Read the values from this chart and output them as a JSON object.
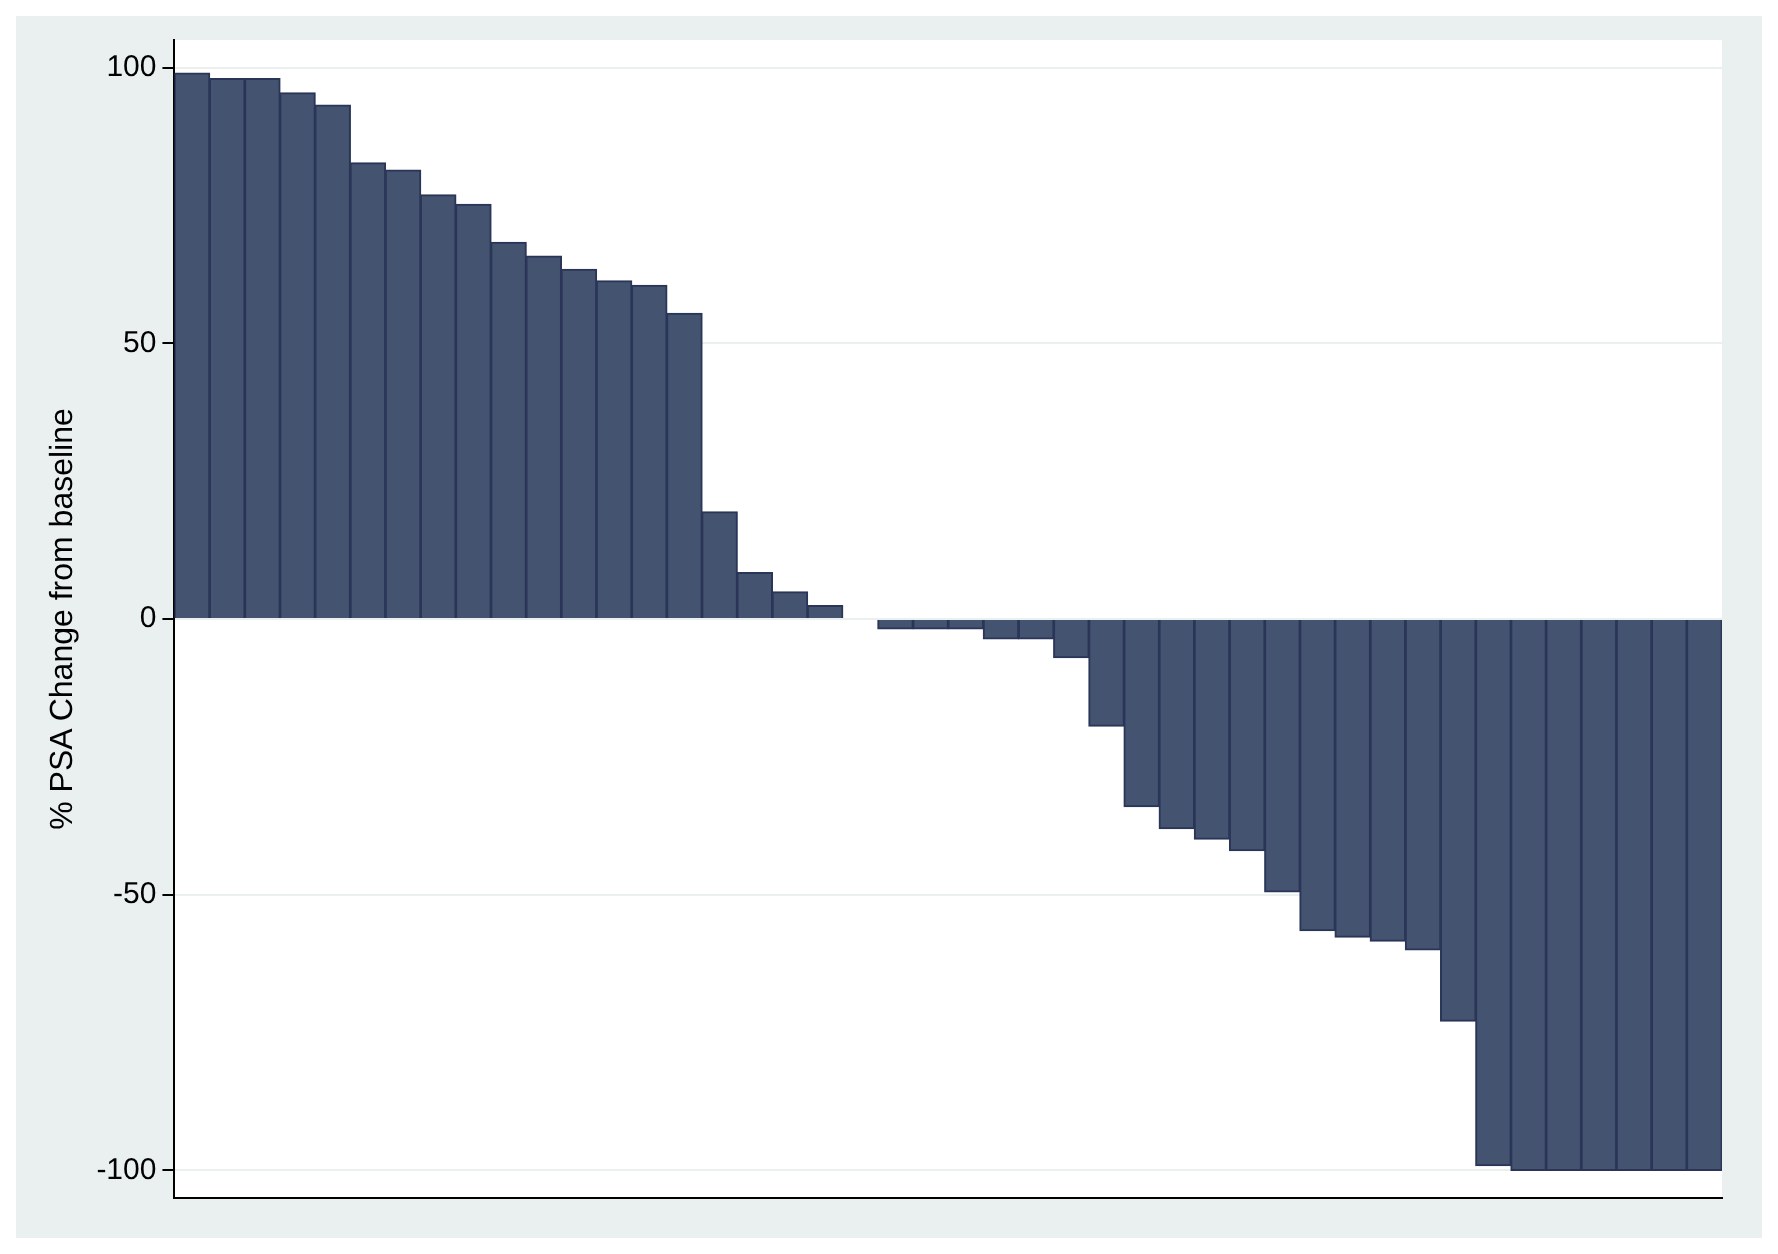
{
  "chart_data": {
    "type": "bar",
    "ylabel": "% PSA Change from baseline",
    "categories": [
      null,
      null,
      null,
      null,
      null,
      null,
      null,
      null,
      null,
      null,
      null,
      null,
      null,
      null,
      null,
      null,
      null,
      null,
      null,
      null,
      null,
      null,
      null,
      null,
      null,
      null,
      null,
      null,
      null,
      null,
      null,
      null,
      null,
      null,
      null,
      null,
      null,
      null,
      null,
      null,
      null,
      null,
      null,
      null
    ],
    "values": [
      99,
      98,
      98,
      95.4,
      93.2,
      82.7,
      81.4,
      76.9,
      75.2,
      68.3,
      65.8,
      63.4,
      61.3,
      60.5,
      55.4,
      19.4,
      8.4,
      4.9,
      2.4,
      0,
      -1.8,
      -1.8,
      -1.8,
      -3.6,
      -3.6,
      -7,
      -19.4,
      -34,
      -38,
      -39.9,
      -42,
      -49.5,
      -56.5,
      -57.7,
      -58.4,
      -60,
      -72.9,
      -99.1,
      -100,
      -100,
      -100,
      -100,
      -100,
      -100
    ],
    "color": "#44536f",
    "ylim": [
      -105,
      105
    ],
    "yticks": [
      -100,
      -50,
      0,
      50,
      100
    ],
    "grid": "y",
    "tick_labels": "y"
  }
}
